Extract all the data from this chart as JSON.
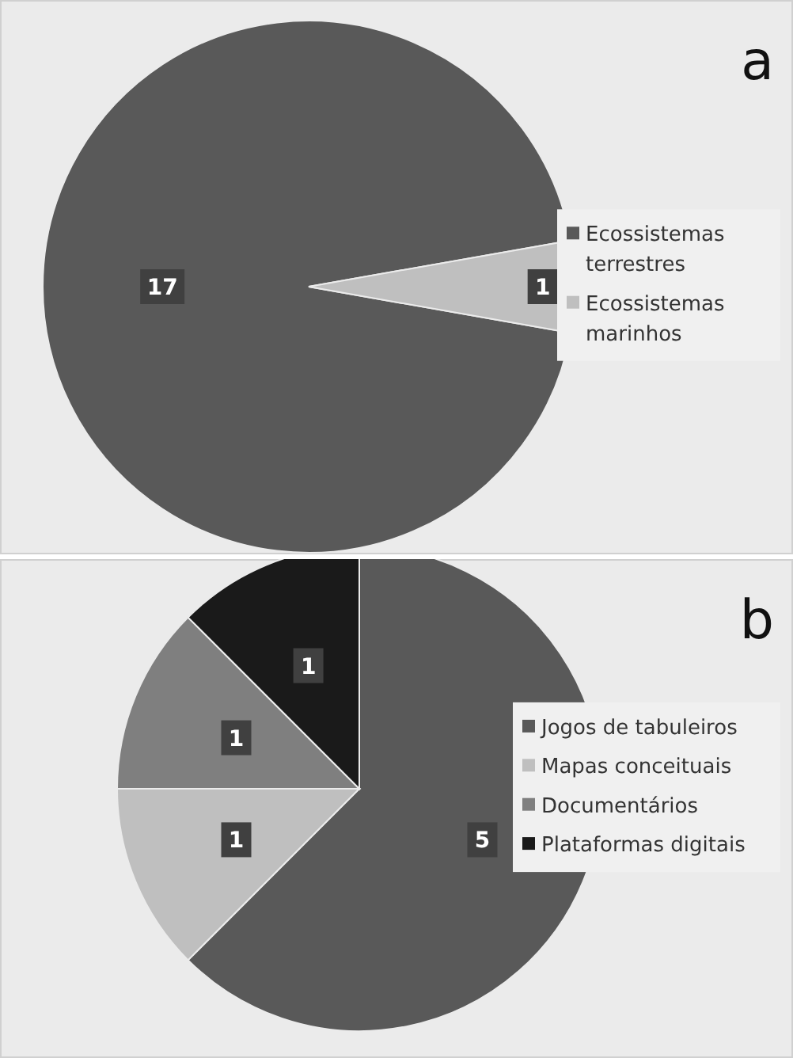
{
  "chart_data": [
    {
      "type": "pie",
      "title": "a",
      "categories": [
        "Ecossistemas terrestres",
        "Ecossistemas marinhos"
      ],
      "values": [
        17,
        1
      ],
      "colors": [
        "#595959",
        "#bfbfbf"
      ],
      "data_labels": true,
      "legend": "right"
    },
    {
      "type": "pie",
      "title": "b",
      "categories": [
        "Jogos de tabuleiros",
        "Mapas conceituais",
        "Documentários",
        "Plataformas digitais"
      ],
      "values": [
        5,
        1,
        1,
        1
      ],
      "colors": [
        "#595959",
        "#bfbfbf",
        "#7f7f7f",
        "#1a1a1a"
      ],
      "data_labels": true,
      "legend": "right"
    }
  ]
}
